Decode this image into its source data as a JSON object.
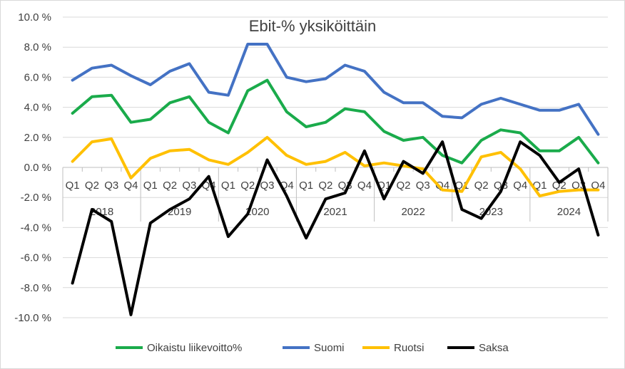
{
  "chart_data": {
    "type": "line",
    "title": "Ebit-% yksiköittäin",
    "xlabel": "",
    "ylabel": "",
    "ylim": [
      -10,
      10
    ],
    "y_ticks": [
      "10.0 %",
      "8.0 %",
      "6.0 %",
      "4.0 %",
      "2.0 %",
      "0.0 %",
      "-2.0 %",
      "-4.0 %",
      "-6.0 %",
      "-8.0 %",
      "-10.0 %"
    ],
    "y_tick_values": [
      10,
      8,
      6,
      4,
      2,
      0,
      -2,
      -4,
      -6,
      -8,
      -10
    ],
    "quarter_labels": [
      "Q1",
      "Q2",
      "Q3",
      "Q4",
      "Q1",
      "Q2",
      "Q3",
      "Q4",
      "Q1",
      "Q2",
      "Q3",
      "Q4",
      "Q1",
      "Q2",
      "Q3",
      "Q4",
      "Q1",
      "Q2",
      "Q3",
      "Q4",
      "Q1",
      "Q2",
      "Q3",
      "Q4",
      "Q1",
      "Q2",
      "Q3",
      "Q4"
    ],
    "years": [
      "2018",
      "2019",
      "2020",
      "2021",
      "2022",
      "2023",
      "2024"
    ],
    "grid": true,
    "legend_position": "bottom",
    "series": [
      {
        "name": "Oikaistu liikevoitto%",
        "color": "#1aab4b",
        "values": [
          3.6,
          4.7,
          4.8,
          3.0,
          3.2,
          4.3,
          4.7,
          3.0,
          2.3,
          5.1,
          5.8,
          3.7,
          2.7,
          3.0,
          3.9,
          3.7,
          2.4,
          1.8,
          2.0,
          0.8,
          0.3,
          1.8,
          2.5,
          2.3,
          1.1,
          1.1,
          2.0,
          0.3
        ]
      },
      {
        "name": "Suomi",
        "color": "#4472c4",
        "values": [
          5.8,
          6.6,
          6.8,
          6.1,
          5.5,
          6.4,
          6.9,
          5.0,
          4.8,
          8.2,
          8.2,
          6.0,
          5.7,
          5.9,
          6.8,
          6.4,
          5.0,
          4.3,
          4.3,
          3.4,
          3.3,
          4.2,
          4.6,
          4.2,
          3.8,
          3.8,
          4.2,
          2.2
        ]
      },
      {
        "name": "Ruotsi",
        "color": "#ffc000",
        "values": [
          0.4,
          1.7,
          1.9,
          -0.7,
          0.6,
          1.1,
          1.2,
          0.5,
          0.2,
          1.0,
          2.0,
          0.8,
          0.2,
          0.4,
          1.0,
          0.1,
          0.3,
          0.1,
          -0.1,
          -1.5,
          -1.6,
          0.7,
          1.0,
          -0.1,
          -1.9,
          -1.6,
          -1.5,
          -1.5
        ]
      },
      {
        "name": "Saksa",
        "color": "#000000",
        "values": [
          -7.7,
          -2.8,
          -3.6,
          -9.8,
          -3.7,
          -2.8,
          -2.1,
          -0.6,
          -4.6,
          -3.1,
          0.5,
          -1.9,
          -4.7,
          -2.1,
          -1.7,
          1.1,
          -2.1,
          0.4,
          -0.4,
          1.7,
          -2.8,
          -3.4,
          -1.6,
          1.7,
          0.8,
          -1.0,
          -0.1,
          -4.5
        ]
      }
    ]
  }
}
